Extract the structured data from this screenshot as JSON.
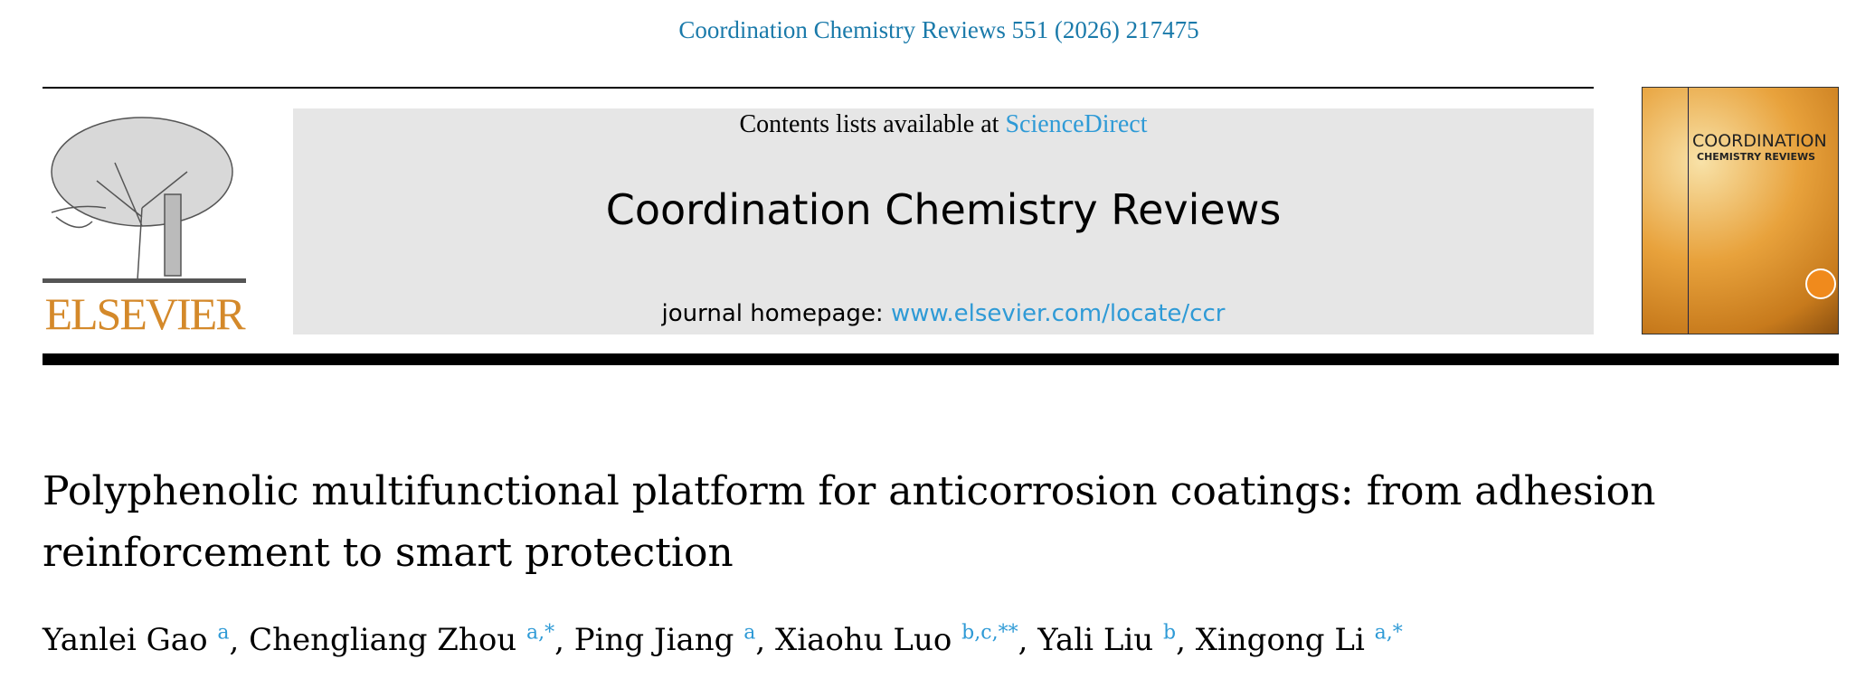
{
  "header": {
    "citation": "Coordination Chemistry Reviews 551 (2026) 217475",
    "contents_prefix": "Contents lists available at",
    "contents_link": "ScienceDirect",
    "journal_title": "Coordination Chemistry Reviews",
    "homepage_prefix": "journal homepage:",
    "homepage_link": "www.elsevier.com/locate/ccr",
    "publisher_logo": "ELSEVIER",
    "cover_title_1": "COORDINATION",
    "cover_title_2": "CHEMISTRY REVIEWS"
  },
  "colors": {
    "link": "#2e9ad6",
    "citation": "#1a7aaa",
    "elsevier": "#d4892a"
  },
  "article": {
    "title": "Polyphenolic multifunctional platform for anticorrosion coatings: from adhesion reinforcement to smart protection",
    "authors": [
      {
        "name": "Yanlei Gao",
        "aff": "a"
      },
      {
        "name": "Chengliang Zhou",
        "aff": "a,*"
      },
      {
        "name": "Ping Jiang",
        "aff": "a"
      },
      {
        "name": "Xiaohu Luo",
        "aff": "b,c,**"
      },
      {
        "name": "Yali Liu",
        "aff": "b"
      },
      {
        "name": "Xingong Li",
        "aff": "a,*"
      }
    ]
  }
}
